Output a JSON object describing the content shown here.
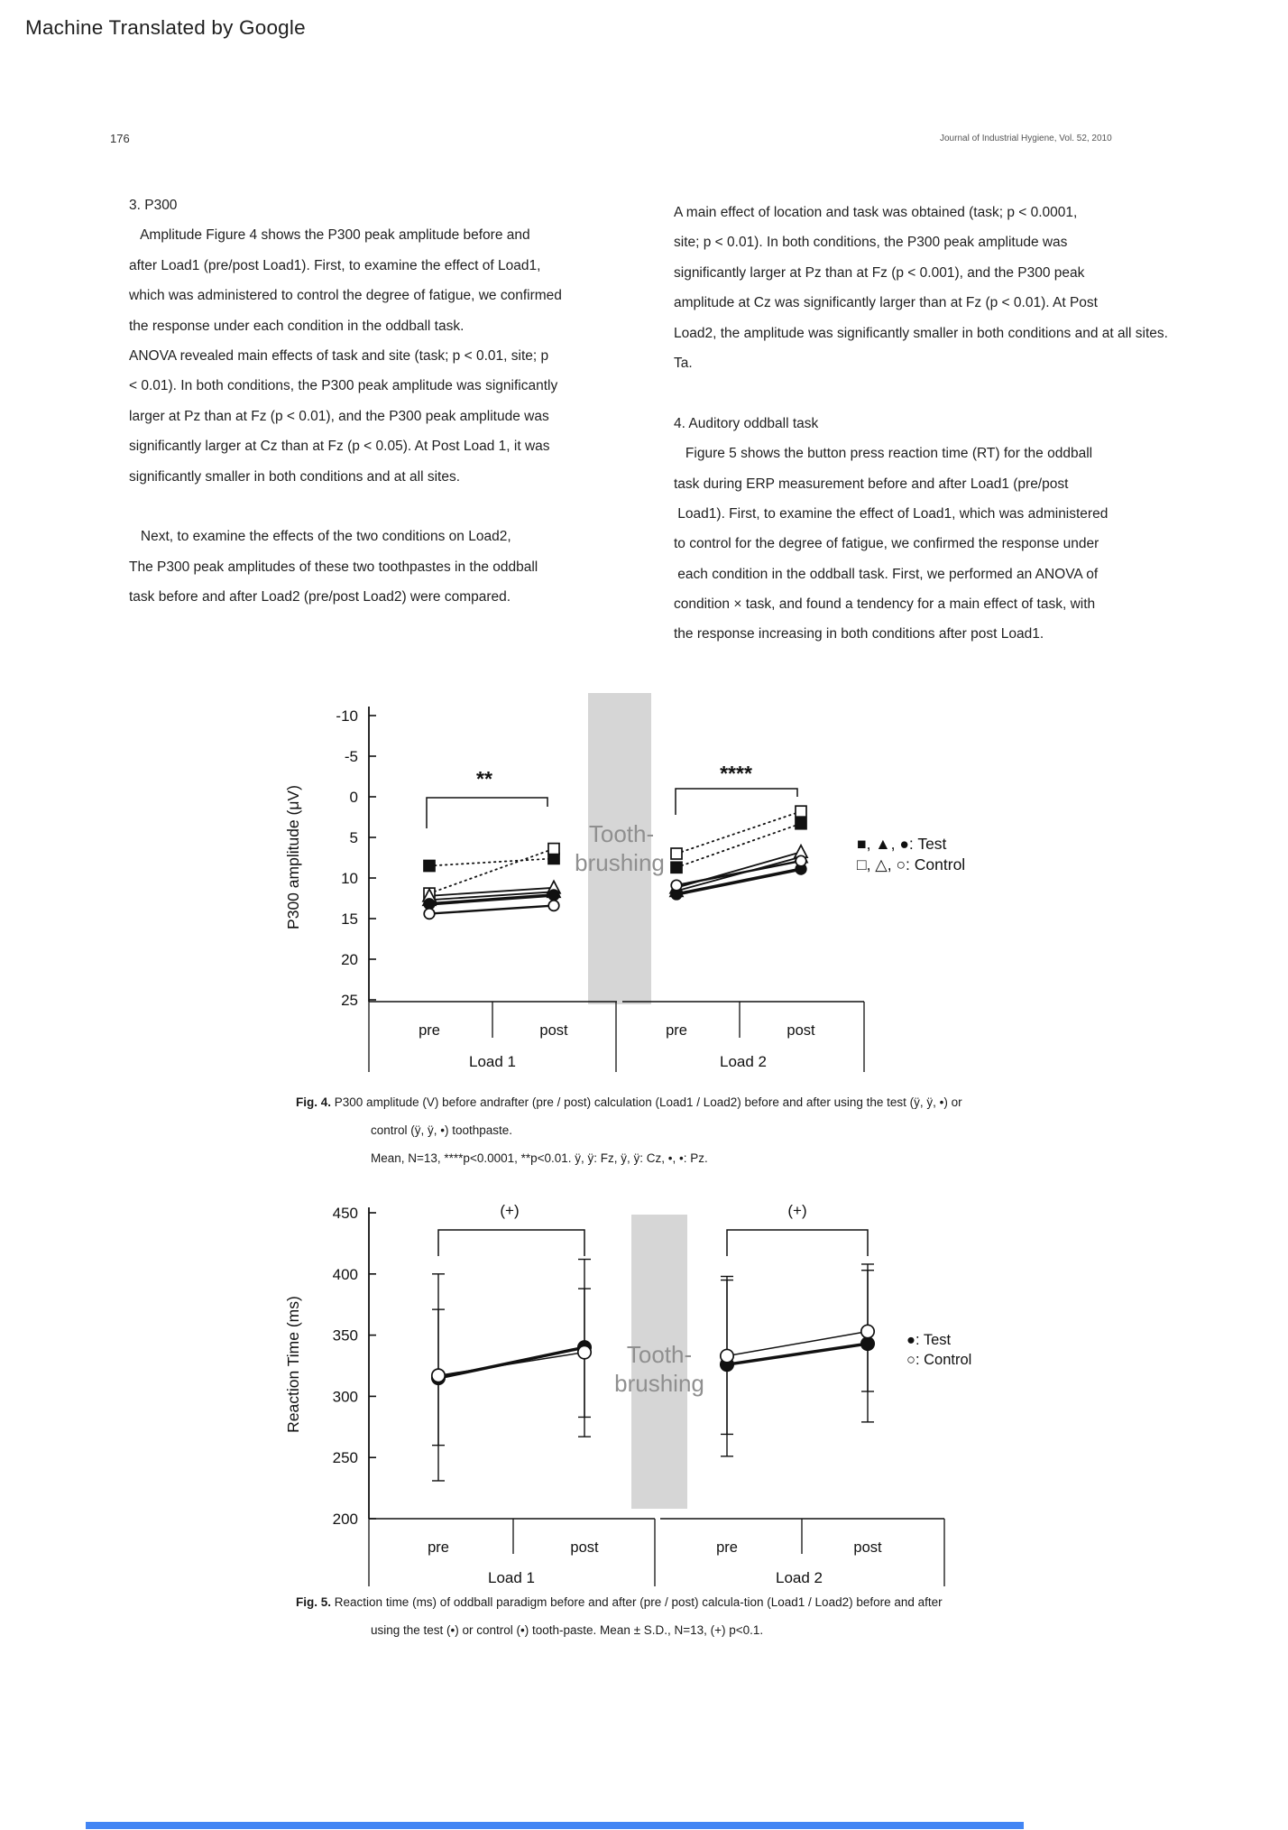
{
  "banner": {
    "text": "Machine Translated by Google"
  },
  "header": {
    "page_number": "176",
    "journal_ref": "Journal of Industrial Hygiene, Vol. 52, 2010"
  },
  "left_column": {
    "lines": [
      "3. P300",
      "   Amplitude Figure 4 shows the P300 peak amplitude before and",
      "after Load1 (pre/post Load1). First, to examine the effect of Load1,",
      "which was administered to control the degree of fatigue, we confirmed",
      "the response under each condition in the oddball task.",
      "ANOVA revealed main effects of task and site (task; p < 0.01, site; p",
      "< 0.01). In both conditions, the P300 peak amplitude was significantly",
      "larger at Pz than at Fz (p < 0.01), and the P300 peak amplitude was",
      "significantly larger at Cz than at Fz (p < 0.05). At Post Load 1, it was",
      "significantly smaller in both conditions and at all sites.",
      "",
      "   Next, to examine the effects of the two conditions on Load2,",
      "The P300 peak amplitudes of these two toothpastes in the oddball",
      "task before and after Load2 (pre/post Load2) were compared."
    ]
  },
  "right_column": {
    "lines": [
      "A main effect of location and task was obtained (task; p < 0.0001,",
      "site; p < 0.01). In both conditions, the P300 peak amplitude was",
      "significantly larger at Pz than at Fz (p < 0.001), and the P300 peak",
      "amplitude at Cz was significantly larger than at Fz (p < 0.01). At Post",
      "Load2, the amplitude was significantly smaller in both conditions and at all sites.",
      "Ta.",
      "",
      "4. Auditory oddball task",
      "   Figure 5 shows the button press reaction time (RT) for the oddball",
      "task during ERP measurement before and after Load1 (pre/post",
      " Load1). First, to examine the effect of Load1, which was administered",
      "to control for the degree of fatigue, we confirmed the response under",
      " each condition in the oddball task. First, we performed an ANOVA of",
      "condition × task, and found a tendency for a main effect of task, with",
      "the response increasing in both conditions after post Load1."
    ]
  },
  "fig4_caption": {
    "label": "Fig. 4.",
    "line1": "P300 amplitude (V) before andrafter (pre / post) calculation (Load1 / Load2) before and after using the test (ÿ, ÿ, •) or",
    "line2": "control (ÿ, ÿ, •) toothpaste.",
    "line3": "Mean, N=13, ****p<0.0001, **p<0.01. ÿ, ÿ: Fz, ÿ, ÿ: Cz, •, •: Pz."
  },
  "fig5_caption": {
    "label": "Fig. 5.",
    "line1": "Reaction time (ms) of oddball paradigm before and after (pre / post) calcula-tion (Load1 / Load2) before and after",
    "line2": "using the test (•) or control (•) tooth-paste. Mean ± S.D., N=13, (+) p<0.1."
  },
  "colors": {
    "band": "#d6d6d6",
    "band_text": "#8f8f8f",
    "ink": "#111111",
    "blue_bar": "#4285f4"
  },
  "chart_data": [
    {
      "type": "line",
      "figure": "Fig. 4",
      "ylabel": "P300 amplitude (μV)",
      "yticks": [
        -10,
        -5,
        0,
        5,
        10,
        15,
        20,
        25
      ],
      "ylim": [
        -10,
        25
      ],
      "y_inverted": true,
      "categories": [
        "pre",
        "post",
        "pre",
        "post"
      ],
      "group_labels": [
        "Load 1",
        "Load 2"
      ],
      "band_label": [
        "Tooth-",
        "brushing"
      ],
      "legend": [
        "■, ▲, ●: Test",
        "□, △, ○: Control"
      ],
      "annotations": [
        {
          "text": "**",
          "group": "Load 1"
        },
        {
          "text": "****",
          "group": "Load 2"
        }
      ],
      "series": [
        {
          "name": "Test Fz",
          "marker": "square",
          "filled": true,
          "line": "dotted",
          "values": [
            8.5,
            7.6,
            8.7,
            3.3
          ]
        },
        {
          "name": "Control Fz",
          "marker": "square",
          "filled": false,
          "line": "dotted",
          "values": [
            11.9,
            6.4,
            7.0,
            1.8
          ]
        },
        {
          "name": "Test Cz",
          "marker": "triangle",
          "filled": true,
          "line": "solid",
          "values": [
            12.7,
            11.7,
            11.6,
            7.4
          ]
        },
        {
          "name": "Control Cz",
          "marker": "triangle",
          "filled": false,
          "line": "solid",
          "values": [
            12.2,
            11.2,
            11.2,
            6.8
          ]
        },
        {
          "name": "Test Pz",
          "marker": "circle",
          "filled": true,
          "line": "solid-thick",
          "values": [
            13.2,
            12.1,
            12.0,
            8.9
          ]
        },
        {
          "name": "Control Pz",
          "marker": "circle",
          "filled": false,
          "line": "solid-thick",
          "values": [
            14.4,
            13.4,
            10.9,
            7.9
          ]
        }
      ]
    },
    {
      "type": "line",
      "figure": "Fig. 5",
      "ylabel": "Reaction Time (ms)",
      "yticks": [
        450,
        400,
        350,
        300,
        250,
        200
      ],
      "ylim": [
        200,
        450
      ],
      "categories": [
        "pre",
        "post",
        "pre",
        "post"
      ],
      "group_labels": [
        "Load 1",
        "Load 2"
      ],
      "band_label": [
        "Tooth-",
        "brushing"
      ],
      "legend": [
        "●: Test",
        "○: Control"
      ],
      "annotations": [
        {
          "text": "(+)",
          "group": "Load 1"
        },
        {
          "text": "(+)",
          "group": "Load 2"
        }
      ],
      "series": [
        {
          "name": "Test",
          "marker": "circle",
          "filled": true,
          "line": "solid-thick",
          "values": [
            315,
            340,
            326,
            343
          ],
          "err_low": [
            260,
            283,
            269,
            304
          ],
          "err_high": [
            371,
            388,
            395,
            403
          ]
        },
        {
          "name": "Control",
          "marker": "circle",
          "filled": false,
          "line": "solid",
          "values": [
            317,
            336,
            333,
            353
          ],
          "err_low": [
            231,
            267,
            251,
            279
          ],
          "err_high": [
            400,
            412,
            398,
            408
          ]
        }
      ]
    }
  ]
}
